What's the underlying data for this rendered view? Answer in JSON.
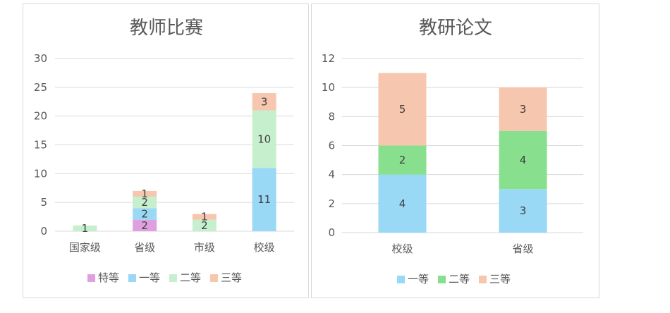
{
  "colors": {
    "axis_text": "#595959",
    "grid": "#d9d9d9",
    "special": "#e0a0e0",
    "first": "#99d9f6",
    "second_light": "#c6efce",
    "second_mid": "#88e08e",
    "third": "#f6c7ae"
  },
  "chart_data": [
    {
      "type": "bar",
      "stacked": true,
      "title": "教师比赛",
      "categories": [
        "国家级",
        "省级",
        "市级",
        "校级"
      ],
      "series": [
        {
          "name": "特等",
          "values": [
            null,
            2,
            null,
            null
          ],
          "color": "#e0a0e0"
        },
        {
          "name": "一等",
          "values": [
            null,
            2,
            null,
            11
          ],
          "color": "#99d9f6"
        },
        {
          "name": "二等",
          "values": [
            1,
            2,
            2,
            10
          ],
          "color": "#c6efce"
        },
        {
          "name": "三等",
          "values": [
            null,
            1,
            1,
            3
          ],
          "color": "#f6c7ae"
        }
      ],
      "ylim": [
        0,
        30
      ],
      "yticks": [
        0,
        5,
        10,
        15,
        20,
        25,
        30
      ],
      "grid": true,
      "legend": "bottom"
    },
    {
      "type": "bar",
      "stacked": true,
      "title": "教研论文",
      "categories": [
        "校级",
        "省级"
      ],
      "series": [
        {
          "name": "一等",
          "values": [
            4,
            3
          ],
          "color": "#99d9f6"
        },
        {
          "name": "二等",
          "values": [
            2,
            4
          ],
          "color": "#88e08e"
        },
        {
          "name": "三等",
          "values": [
            5,
            3
          ],
          "color": "#f6c7ae"
        }
      ],
      "ylim": [
        0,
        12
      ],
      "yticks": [
        0,
        2,
        4,
        6,
        8,
        10,
        12
      ],
      "grid": true,
      "legend": "bottom"
    }
  ]
}
